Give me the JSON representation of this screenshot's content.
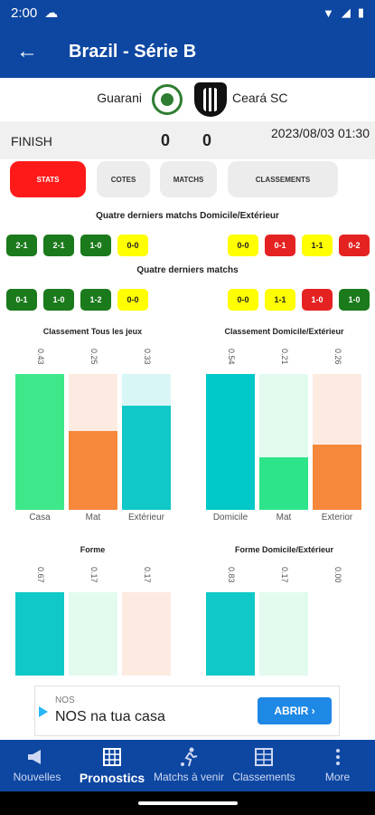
{
  "status_bar": {
    "time": "2:00"
  },
  "app_bar": {
    "title": "Brazil - Série B"
  },
  "match": {
    "home": "Guarani",
    "away": "Ceará SC",
    "status": "FINISH",
    "home_score": "0",
    "away_score": "0",
    "datetime": "2023/08/03 01:30"
  },
  "tabs": [
    "STATS",
    "COTES",
    "MATCHS",
    "CLASSEMENTS"
  ],
  "section_home_away_last4": "Quatre derniers matchs Domicile/Extérieur",
  "section_last4": "Quatre derniers matchs",
  "last4_home_away": {
    "home": [
      {
        "score": "2-1",
        "result": "win"
      },
      {
        "score": "2-1",
        "result": "win"
      },
      {
        "score": "1-0",
        "result": "win"
      },
      {
        "score": "0-0",
        "result": "draw"
      }
    ],
    "away": [
      {
        "score": "0-0",
        "result": "draw"
      },
      {
        "score": "0-1",
        "result": "loss"
      },
      {
        "score": "1-1",
        "result": "draw"
      },
      {
        "score": "0-2",
        "result": "loss"
      }
    ]
  },
  "last4": {
    "home": [
      {
        "score": "0-1",
        "result": "win"
      },
      {
        "score": "1-0",
        "result": "win"
      },
      {
        "score": "1-2",
        "result": "win"
      },
      {
        "score": "0-0",
        "result": "draw"
      }
    ],
    "away": [
      {
        "score": "0-0",
        "result": "draw"
      },
      {
        "score": "1-1",
        "result": "draw"
      },
      {
        "score": "1-0",
        "result": "loss"
      },
      {
        "score": "1-0",
        "result": "win"
      }
    ]
  },
  "colors": {
    "primary": "#0d47a1",
    "win": "#1b7a1b",
    "draw": "#ffff00",
    "loss": "#e52222",
    "tab_active": "#ff1a1a"
  },
  "charts": {
    "c1": {
      "title": "Classement Tous les jeux",
      "labels": [
        "0.43",
        "0.25",
        "0.33"
      ],
      "values": [
        0.43,
        0.25,
        0.33
      ],
      "cats": [
        "Casa",
        "Mat",
        "Extérieur"
      ]
    },
    "c2": {
      "title": "Classement Domicile/Extérieur",
      "labels": [
        "0.54",
        "0.21",
        "0.26"
      ],
      "values": [
        0.54,
        0.21,
        0.26
      ],
      "cats": [
        "Domicile",
        "Mat",
        "Exterior"
      ]
    },
    "c3": {
      "title": "Forme",
      "labels": [
        "0.67",
        "0.17",
        "0.17"
      ],
      "values": [
        0.67,
        0.17,
        0.17
      ],
      "cats": [
        "",
        "",
        ""
      ]
    },
    "c4": {
      "title": "Forme Domicile/Extérieur",
      "labels": [
        "0.83",
        "0.17",
        "0.00"
      ],
      "values": [
        0.83,
        0.17,
        0.0
      ],
      "cats": [
        "",
        "",
        ""
      ]
    }
  },
  "ad": {
    "brand": "NOS",
    "text": "NOS na tua casa",
    "cta": "ABRIR ›"
  },
  "bottom_nav": [
    "Nouvelles",
    "Pronostics",
    "Matchs à venir",
    "Classements",
    "More"
  ]
}
